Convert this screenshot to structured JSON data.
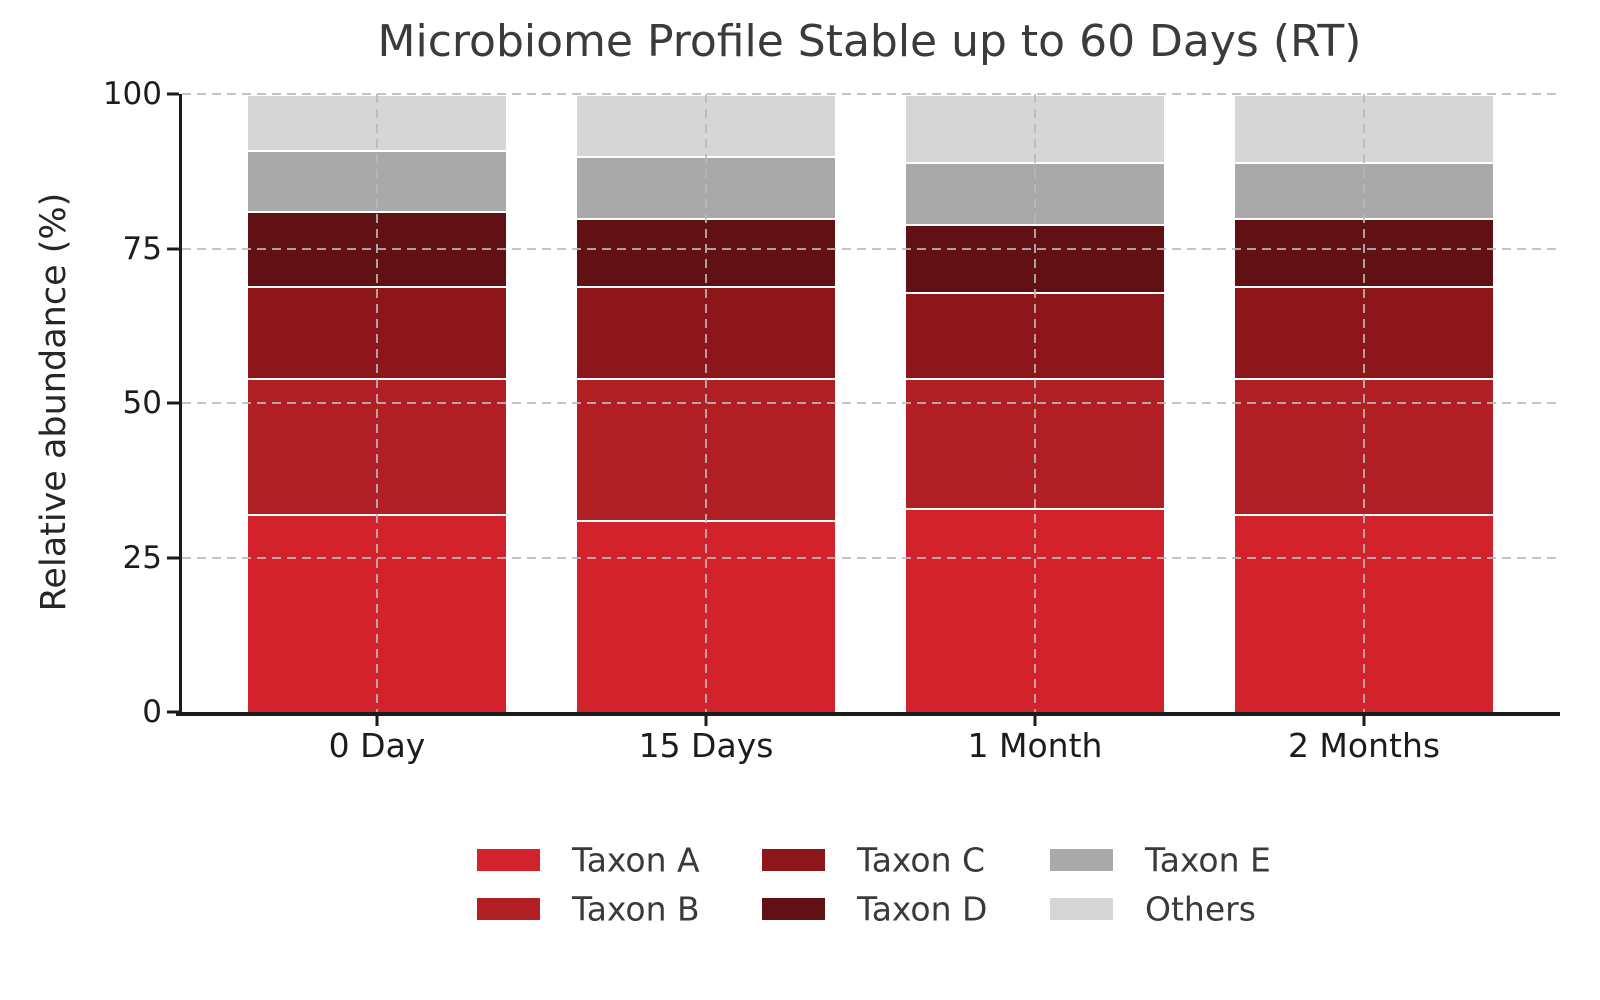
{
  "title": "Microbiome Profile Stable up to 60 Days (RT)",
  "chart_data": {
    "type": "bar",
    "stacked": true,
    "orientation": "vertical",
    "title": "Microbiome Profile Stable up to 60 Days (RT)",
    "xlabel": "",
    "ylabel": "Relative abundance (%)",
    "categories": [
      "0 Day",
      "15 Days",
      "1 Month",
      "2 Months"
    ],
    "series": [
      {
        "name": "Taxon A",
        "color": "#d2232c",
        "values": [
          32,
          31,
          33,
          32
        ]
      },
      {
        "name": "Taxon B",
        "color": "#b01f24",
        "values": [
          22,
          23,
          21,
          22
        ]
      },
      {
        "name": "Taxon C",
        "color": "#8d161b",
        "values": [
          15,
          15,
          14,
          15
        ]
      },
      {
        "name": "Taxon D",
        "color": "#611013",
        "values": [
          12,
          11,
          11,
          11
        ]
      },
      {
        "name": "Taxon E",
        "color": "#a9a9a9",
        "values": [
          10,
          10,
          10,
          9
        ]
      },
      {
        "name": "Others",
        "color": "#d6d6d6",
        "values": [
          9,
          10,
          11,
          11
        ]
      }
    ],
    "ylim": [
      0,
      100
    ],
    "yticks": [
      0,
      25,
      50,
      75,
      100
    ],
    "grid": "dashed, drawn over bars, horizontal at yticks and vertical at bar centers",
    "legend_position": "bottom",
    "legend_columns": 3,
    "axis_color": "#1c1c1c",
    "grid_color": "#b9b9b9",
    "title_color": "#3b3b3b"
  }
}
